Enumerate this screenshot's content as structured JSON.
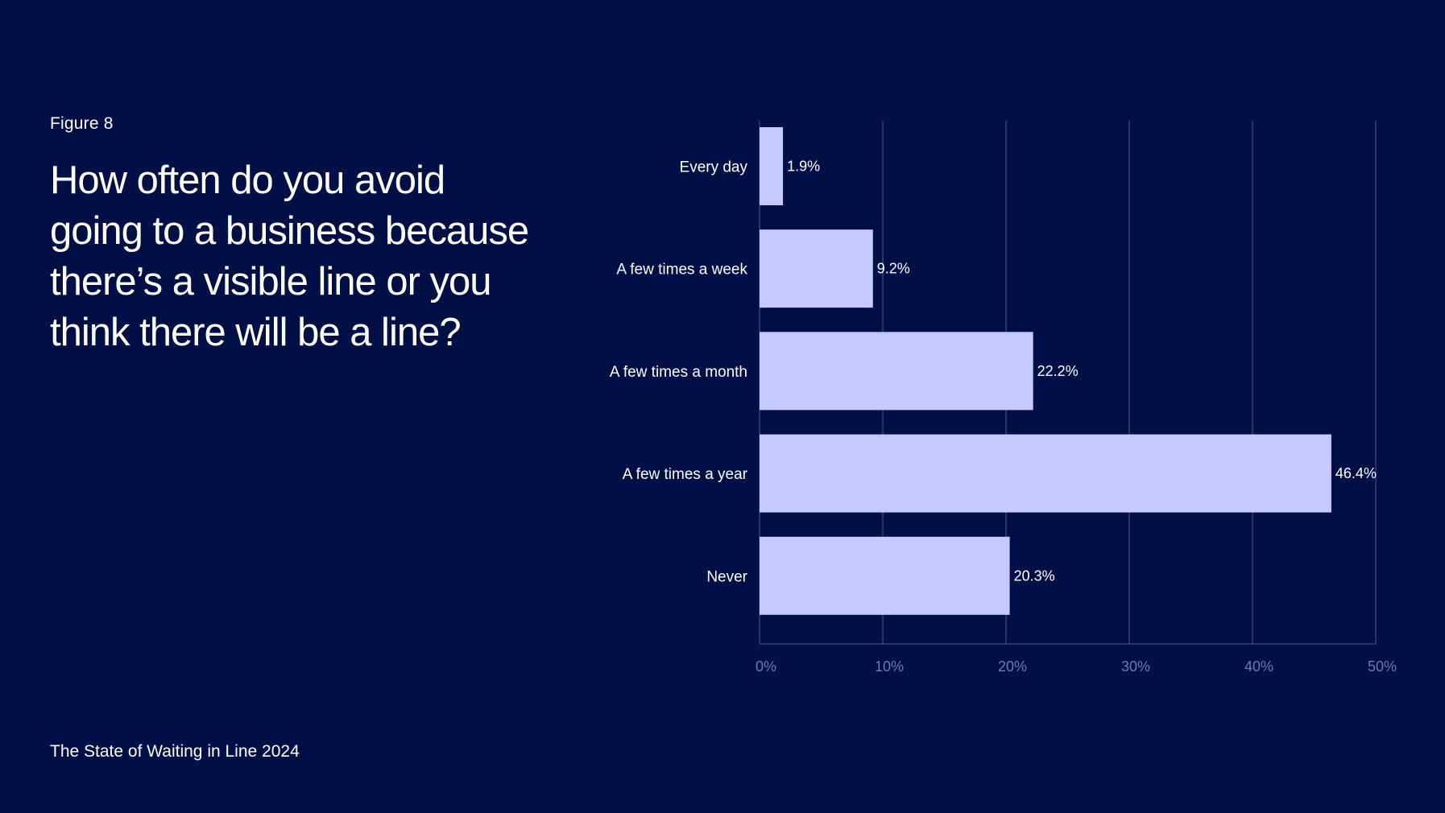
{
  "figure_label": "Figure 8",
  "question": "How often do you avoid going to a business because there’s a visible line or you think there will be a line?",
  "source": "The State of Waiting in Line 2024",
  "colors": {
    "background": "#000f45",
    "bar": "#c5c9fd",
    "grid": "#3a4478",
    "tick_text": "#6f7ab0",
    "text": "#ffffff"
  },
  "chart_data": {
    "type": "bar",
    "orientation": "horizontal",
    "categories": [
      "Every day",
      "A few times a week",
      "A few times a month",
      "A few times a year",
      "Never"
    ],
    "values": [
      1.9,
      9.2,
      22.2,
      46.4,
      20.3
    ],
    "value_labels": [
      "1.9%",
      "9.2%",
      "22.2%",
      "46.4%",
      "20.3%"
    ],
    "xlim": [
      0,
      50
    ],
    "ticks": [
      0,
      10,
      20,
      30,
      40,
      50
    ],
    "tick_labels": [
      "0%",
      "10%",
      "20%",
      "30%",
      "40%",
      "50%"
    ],
    "grid": true,
    "legend": "none"
  }
}
